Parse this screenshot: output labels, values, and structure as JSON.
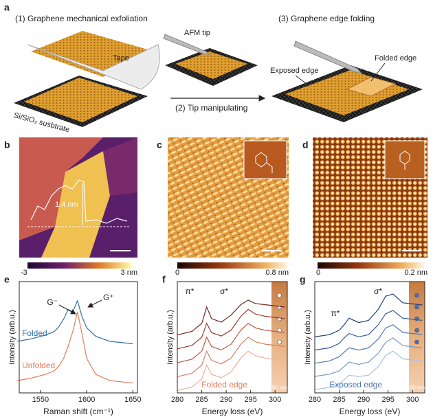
{
  "panels": {
    "a": {
      "label": "a",
      "step1": "(1) Graphene mechanical exfoliation",
      "tape": "Tape",
      "substrate": "Si/SiO₂ susbtrate",
      "afm_tip": "AFM tip",
      "step2": "(2) Tip manipulating",
      "step3": "(3) Graphene edge folding",
      "folded_edge": "Folded edge",
      "exposed_edge": "Exposed edge"
    },
    "b": {
      "label": "b",
      "height": "1.4 nm",
      "cbar_min": "-3",
      "cbar_max": "3 nm"
    },
    "c": {
      "label": "c",
      "cbar_min": "0",
      "cbar_max": "0.8 nm"
    },
    "d": {
      "label": "d",
      "cbar_min": "0",
      "cbar_max": "0.2 nm"
    }
  },
  "chart_data": [
    {
      "type": "line",
      "label": "e",
      "xlabel": "Raman shift (cm⁻¹)",
      "ylabel": "Intensity (arb.u.)",
      "x": [
        1525,
        1540,
        1555,
        1565,
        1570,
        1575,
        1580,
        1585,
        1590,
        1595,
        1600,
        1610,
        1625,
        1650
      ],
      "xlim": [
        1527,
        1655
      ],
      "xticks": [
        1550,
        1600,
        1650
      ],
      "ylim": [
        0,
        8.5
      ],
      "series": [
        {
          "name": "Folded",
          "color": "#2f6ea5",
          "values": [
            4.2,
            4.4,
            4.7,
            5.0,
            5.4,
            6.0,
            6.8,
            6.6,
            7.5,
            6.2,
            5.3,
            4.6,
            4.2,
            4.0
          ]
        },
        {
          "name": "Unfolded",
          "color": "#e07a5a",
          "values": [
            1.0,
            1.2,
            1.5,
            1.8,
            2.2,
            2.8,
            3.8,
            5.0,
            6.6,
            4.8,
            2.8,
            1.5,
            1.0,
            0.8
          ]
        }
      ],
      "annotations": [
        "G⁻",
        "G⁺"
      ]
    },
    {
      "type": "line",
      "label": "f",
      "xlabel": "Energy loss (eV)",
      "ylabel": "Intensity (arb.u.)",
      "x": [
        280,
        283,
        285,
        286,
        287,
        289,
        291,
        293,
        294.5,
        296,
        298,
        302
      ],
      "xlim": [
        280,
        302.5
      ],
      "xticks": [
        280,
        285,
        290,
        295,
        300
      ],
      "ylim": [
        0,
        9
      ],
      "series": [
        {
          "color": "#7b2020",
          "values": [
            5.0,
            5.3,
            6.0,
            7.4,
            6.4,
            6.1,
            6.7,
            7.6,
            8.0,
            7.7,
            7.6,
            7.4
          ]
        },
        {
          "color": "#9a3a2c",
          "values": [
            3.8,
            4.1,
            4.8,
            6.0,
            5.2,
            4.9,
            5.4,
            6.6,
            7.2,
            6.8,
            6.6,
            6.4
          ]
        },
        {
          "color": "#b85a40",
          "values": [
            2.6,
            2.9,
            3.6,
            4.8,
            4.0,
            3.7,
            4.2,
            5.4,
            6.0,
            5.6,
            5.4,
            5.2
          ]
        },
        {
          "color": "#d47f62",
          "values": [
            1.4,
            1.7,
            2.4,
            3.6,
            2.8,
            2.5,
            3.0,
            4.2,
            4.8,
            4.4,
            4.2,
            4.0
          ]
        },
        {
          "color": "#eeb09a",
          "values": [
            0.2,
            0.5,
            1.2,
            2.4,
            1.6,
            1.3,
            1.8,
            3.0,
            3.6,
            3.2,
            3.0,
            2.8
          ]
        }
      ],
      "annotations": [
        "π*",
        "σ*",
        "Folded edge",
        "90 nm"
      ]
    },
    {
      "type": "line",
      "label": "g",
      "xlabel": "Energy loss (eV)",
      "ylabel": "Intensity (arb.u.)",
      "x": [
        280,
        283,
        285,
        286,
        287,
        289,
        291,
        293,
        294.5,
        296,
        298,
        302
      ],
      "xlim": [
        280,
        302.5
      ],
      "xticks": [
        280,
        285,
        290,
        295,
        300
      ],
      "ylim": [
        0,
        9.5
      ],
      "series": [
        {
          "color": "#1f3f7a",
          "values": [
            5.1,
            5.3,
            5.7,
            6.2,
            6.8,
            6.4,
            6.6,
            7.6,
            8.8,
            9.0,
            8.2,
            8.0
          ]
        },
        {
          "color": "#33599a",
          "values": [
            3.9,
            4.1,
            4.5,
            5.0,
            5.4,
            5.1,
            5.3,
            6.2,
            7.2,
            7.5,
            6.8,
            6.6
          ]
        },
        {
          "color": "#4f77b5",
          "values": [
            2.7,
            2.9,
            3.3,
            3.7,
            4.1,
            3.9,
            4.1,
            4.9,
            5.9,
            6.2,
            5.5,
            5.3
          ]
        },
        {
          "color": "#7597cb",
          "values": [
            1.5,
            1.7,
            2.0,
            2.4,
            2.8,
            2.6,
            2.8,
            3.6,
            4.6,
            5.0,
            4.3,
            4.1
          ]
        },
        {
          "color": "#a9c0e3",
          "values": [
            0.3,
            0.5,
            0.8,
            1.2,
            1.6,
            1.5,
            1.6,
            2.4,
            3.4,
            3.8,
            3.1,
            2.9
          ]
        }
      ],
      "annotations": [
        "π*",
        "σ*",
        "Exposed edge",
        "60 nm"
      ]
    }
  ]
}
